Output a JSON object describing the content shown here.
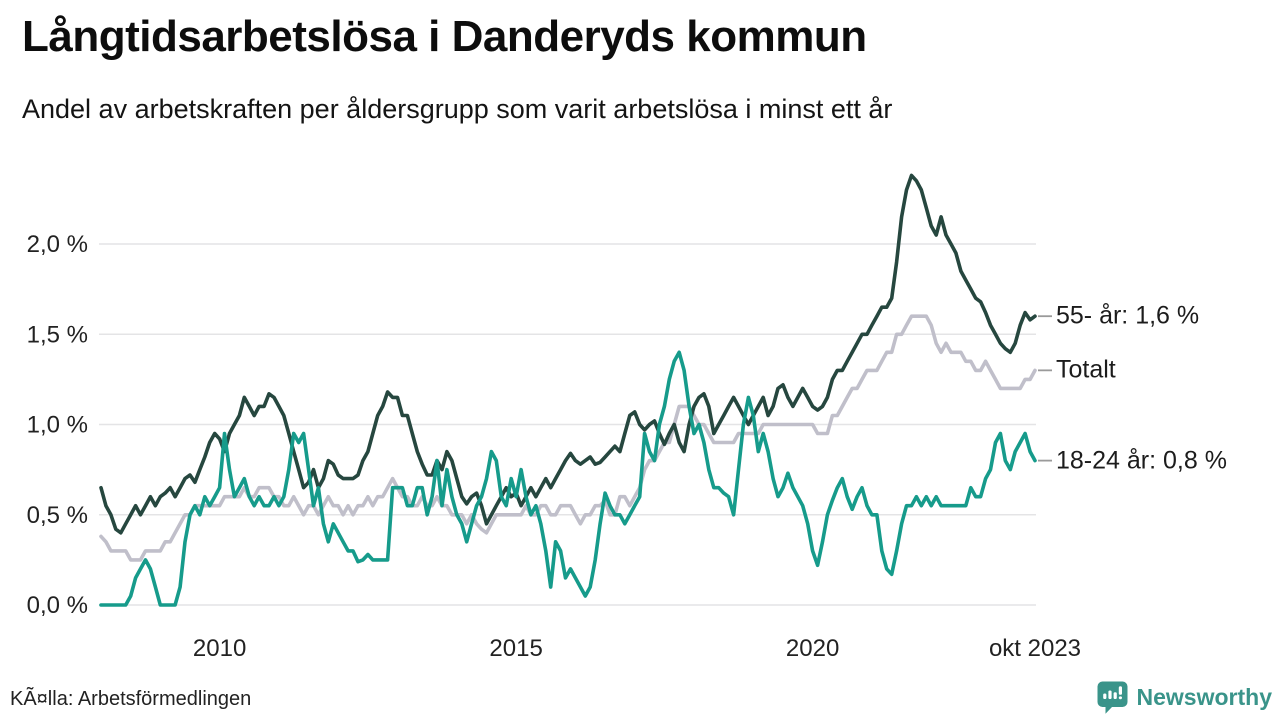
{
  "header": {
    "title": "Långtidsarbetslösa i Danderyds kommun",
    "subtitle": "Andel av arbetskraften per åldersgrupp som varit arbetslösa i minst ett år"
  },
  "footer": {
    "source": "KÃ¤lla: Arbetsförmedlingen",
    "brand": "Newsworthy"
  },
  "colors": {
    "series_55": "#26473f",
    "series_total": "#c0bfca",
    "series_1824": "#169b8b",
    "grid": "#e4e4e6",
    "brand_teal": "#3a948a",
    "annotation_tick": "#9a9a9a"
  },
  "chart_data": {
    "type": "line",
    "title": "Långtidsarbetslösa i Danderyds kommun",
    "subtitle": "Andel av arbetskraften per åldersgrupp som varit arbetslösa i minst ett år",
    "unit": "%",
    "x_start": "2008-01",
    "x_end": "2023-10",
    "x_frequency": "monthly",
    "ylim": [
      0,
      2.4
    ],
    "grid": true,
    "legend_position": "right-annotations",
    "x_ticks": [
      {
        "label": "2010",
        "month_index": 24
      },
      {
        "label": "2015",
        "month_index": 84
      },
      {
        "label": "2020",
        "month_index": 144
      },
      {
        "label": "okt 2023",
        "month_index": 189
      }
    ],
    "y_ticks": [
      {
        "value": 0.0,
        "label": "0,0 %"
      },
      {
        "value": 0.5,
        "label": "0,5 %"
      },
      {
        "value": 1.0,
        "label": "1,0 %"
      },
      {
        "value": 1.5,
        "label": "1,5 %"
      },
      {
        "value": 2.0,
        "label": "2,0 %"
      }
    ],
    "series": [
      {
        "id": "totalt",
        "name": "Totalt",
        "annotation": "Totalt",
        "color": "#c0bfca",
        "values": [
          0.38,
          0.35,
          0.3,
          0.3,
          0.3,
          0.3,
          0.25,
          0.25,
          0.25,
          0.3,
          0.3,
          0.3,
          0.3,
          0.35,
          0.35,
          0.4,
          0.45,
          0.5,
          0.5,
          0.55,
          0.55,
          0.55,
          0.55,
          0.55,
          0.55,
          0.6,
          0.6,
          0.6,
          0.6,
          0.65,
          0.6,
          0.6,
          0.65,
          0.65,
          0.65,
          0.6,
          0.6,
          0.55,
          0.55,
          0.6,
          0.55,
          0.5,
          0.55,
          0.55,
          0.5,
          0.55,
          0.6,
          0.55,
          0.55,
          0.5,
          0.55,
          0.5,
          0.55,
          0.55,
          0.6,
          0.55,
          0.6,
          0.6,
          0.65,
          0.7,
          0.65,
          0.6,
          0.6,
          0.55,
          0.55,
          0.6,
          0.55,
          0.55,
          0.6,
          0.55,
          0.55,
          0.5,
          0.5,
          0.5,
          0.45,
          0.5,
          0.45,
          0.42,
          0.4,
          0.45,
          0.5,
          0.5,
          0.5,
          0.5,
          0.5,
          0.5,
          0.55,
          0.5,
          0.5,
          0.55,
          0.55,
          0.5,
          0.5,
          0.55,
          0.55,
          0.55,
          0.5,
          0.45,
          0.5,
          0.5,
          0.55,
          0.55,
          0.58,
          0.5,
          0.5,
          0.6,
          0.6,
          0.55,
          0.6,
          0.65,
          0.75,
          0.8,
          0.8,
          0.85,
          0.9,
          0.9,
          1.0,
          1.1,
          1.1,
          1.1,
          1.05,
          1.0,
          1.0,
          0.95,
          0.9,
          0.9,
          0.9,
          0.9,
          0.9,
          0.95,
          0.95,
          0.95,
          0.95,
          0.95,
          1.0,
          1.0,
          1.0,
          1.0,
          1.0,
          1.0,
          1.0,
          1.0,
          1.0,
          1.0,
          1.0,
          0.95,
          0.95,
          0.95,
          1.05,
          1.05,
          1.1,
          1.15,
          1.2,
          1.2,
          1.25,
          1.3,
          1.3,
          1.3,
          1.35,
          1.4,
          1.4,
          1.5,
          1.5,
          1.55,
          1.6,
          1.6,
          1.6,
          1.6,
          1.55,
          1.45,
          1.4,
          1.45,
          1.4,
          1.4,
          1.4,
          1.35,
          1.35,
          1.3,
          1.3,
          1.35,
          1.3,
          1.25,
          1.2,
          1.2,
          1.2,
          1.2,
          1.2,
          1.25,
          1.25,
          1.3
        ]
      },
      {
        "id": "55-ar",
        "name": "55- år",
        "annotation": "55- år: 1,6 %",
        "color": "#26473f",
        "values": [
          0.65,
          0.55,
          0.5,
          0.42,
          0.4,
          0.45,
          0.5,
          0.55,
          0.5,
          0.55,
          0.6,
          0.55,
          0.6,
          0.62,
          0.65,
          0.6,
          0.65,
          0.7,
          0.72,
          0.68,
          0.75,
          0.82,
          0.9,
          0.95,
          0.92,
          0.85,
          0.95,
          1.0,
          1.05,
          1.15,
          1.1,
          1.05,
          1.1,
          1.1,
          1.17,
          1.15,
          1.1,
          1.05,
          0.95,
          0.85,
          0.75,
          0.65,
          0.68,
          0.75,
          0.65,
          0.7,
          0.8,
          0.78,
          0.72,
          0.7,
          0.7,
          0.7,
          0.72,
          0.8,
          0.85,
          0.95,
          1.05,
          1.1,
          1.18,
          1.15,
          1.15,
          1.05,
          1.05,
          0.95,
          0.85,
          0.78,
          0.72,
          0.72,
          0.8,
          0.75,
          0.85,
          0.8,
          0.7,
          0.6,
          0.56,
          0.6,
          0.62,
          0.55,
          0.45,
          0.5,
          0.55,
          0.6,
          0.65,
          0.6,
          0.62,
          0.55,
          0.6,
          0.65,
          0.6,
          0.65,
          0.7,
          0.65,
          0.7,
          0.75,
          0.8,
          0.84,
          0.8,
          0.78,
          0.8,
          0.82,
          0.78,
          0.79,
          0.82,
          0.85,
          0.88,
          0.85,
          0.95,
          1.05,
          1.07,
          1.0,
          0.97,
          1.0,
          1.02,
          0.95,
          0.89,
          0.95,
          1.0,
          0.9,
          0.85,
          1.0,
          1.1,
          1.15,
          1.17,
          1.1,
          0.95,
          1.0,
          1.05,
          1.1,
          1.15,
          1.1,
          1.05,
          1.0,
          1.05,
          1.1,
          1.15,
          1.05,
          1.1,
          1.2,
          1.22,
          1.15,
          1.1,
          1.15,
          1.2,
          1.15,
          1.1,
          1.08,
          1.1,
          1.15,
          1.25,
          1.3,
          1.3,
          1.35,
          1.4,
          1.45,
          1.5,
          1.5,
          1.55,
          1.6,
          1.65,
          1.65,
          1.7,
          1.9,
          2.15,
          2.3,
          2.38,
          2.35,
          2.3,
          2.2,
          2.1,
          2.05,
          2.15,
          2.05,
          2.0,
          1.95,
          1.85,
          1.8,
          1.75,
          1.7,
          1.68,
          1.62,
          1.55,
          1.5,
          1.45,
          1.42,
          1.4,
          1.45,
          1.55,
          1.62,
          1.58,
          1.6
        ]
      },
      {
        "id": "18-24-ar",
        "name": "18-24 år",
        "annotation": "18-24 år: 0,8 %",
        "color": "#169b8b",
        "values": [
          0.0,
          0.0,
          0.0,
          0.0,
          0.0,
          0.0,
          0.05,
          0.15,
          0.2,
          0.25,
          0.2,
          0.1,
          0.0,
          0.0,
          0.0,
          0.0,
          0.1,
          0.35,
          0.5,
          0.55,
          0.5,
          0.6,
          0.55,
          0.6,
          0.65,
          0.95,
          0.75,
          0.6,
          0.65,
          0.7,
          0.6,
          0.55,
          0.6,
          0.55,
          0.55,
          0.6,
          0.55,
          0.6,
          0.75,
          0.95,
          0.9,
          0.95,
          0.75,
          0.55,
          0.65,
          0.45,
          0.35,
          0.45,
          0.4,
          0.35,
          0.3,
          0.3,
          0.24,
          0.25,
          0.28,
          0.25,
          0.25,
          0.25,
          0.25,
          0.65,
          0.65,
          0.65,
          0.55,
          0.55,
          0.65,
          0.65,
          0.5,
          0.6,
          0.8,
          0.55,
          0.75,
          0.6,
          0.5,
          0.45,
          0.35,
          0.45,
          0.55,
          0.6,
          0.7,
          0.85,
          0.8,
          0.6,
          0.55,
          0.7,
          0.6,
          0.75,
          0.6,
          0.5,
          0.55,
          0.45,
          0.3,
          0.1,
          0.35,
          0.3,
          0.15,
          0.2,
          0.15,
          0.1,
          0.05,
          0.1,
          0.25,
          0.45,
          0.62,
          0.55,
          0.5,
          0.5,
          0.45,
          0.5,
          0.55,
          0.6,
          0.95,
          0.85,
          0.8,
          1.0,
          1.1,
          1.25,
          1.35,
          1.4,
          1.3,
          1.1,
          0.95,
          1.0,
          0.9,
          0.75,
          0.65,
          0.65,
          0.62,
          0.6,
          0.5,
          0.75,
          1.0,
          1.15,
          1.05,
          0.85,
          0.95,
          0.85,
          0.7,
          0.6,
          0.65,
          0.73,
          0.65,
          0.6,
          0.55,
          0.45,
          0.3,
          0.22,
          0.35,
          0.5,
          0.58,
          0.65,
          0.7,
          0.6,
          0.53,
          0.6,
          0.65,
          0.55,
          0.5,
          0.5,
          0.3,
          0.2,
          0.17,
          0.3,
          0.45,
          0.55,
          0.55,
          0.6,
          0.55,
          0.6,
          0.55,
          0.6,
          0.55,
          0.55,
          0.55,
          0.55,
          0.55,
          0.55,
          0.65,
          0.6,
          0.6,
          0.7,
          0.75,
          0.9,
          0.95,
          0.8,
          0.75,
          0.85,
          0.9,
          0.95,
          0.85,
          0.8
        ]
      }
    ]
  }
}
